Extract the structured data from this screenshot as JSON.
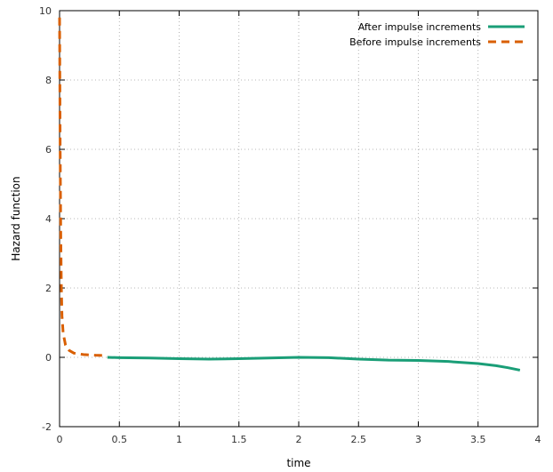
{
  "chart_data": {
    "type": "line",
    "title": "",
    "xlabel": "time",
    "ylabel": "Hazard function",
    "xlim": [
      0,
      4
    ],
    "ylim": [
      -2,
      10
    ],
    "xticks": [
      "0",
      "0.5",
      "1",
      "1.5",
      "2",
      "2.5",
      "3",
      "3.5",
      "4"
    ],
    "yticks": [
      "-2",
      "0",
      "2",
      "4",
      "6",
      "8",
      "10"
    ],
    "grid": true,
    "legend_position": "top-right",
    "series": [
      {
        "name": "After impulse increments",
        "color": "#1a9e77",
        "style": "solid",
        "x": [
          0.4,
          0.5,
          0.75,
          1.0,
          1.25,
          1.5,
          1.75,
          2.0,
          2.25,
          2.5,
          2.75,
          3.0,
          3.25,
          3.5,
          3.65,
          3.75,
          3.85
        ],
        "y": [
          0.0,
          -0.01,
          -0.02,
          -0.04,
          -0.05,
          -0.04,
          -0.02,
          0.0,
          -0.01,
          -0.05,
          -0.08,
          -0.09,
          -0.12,
          -0.18,
          -0.24,
          -0.3,
          -0.37
        ]
      },
      {
        "name": "Before impulse increments",
        "color": "#d95f02",
        "style": "dashed",
        "x": [
          0.0,
          0.005,
          0.01,
          0.015,
          0.02,
          0.03,
          0.05,
          0.08,
          0.12,
          0.2,
          0.3,
          0.4
        ],
        "y": [
          9.8,
          6.0,
          3.5,
          2.0,
          1.2,
          0.7,
          0.35,
          0.2,
          0.12,
          0.08,
          0.06,
          0.05
        ]
      }
    ]
  }
}
